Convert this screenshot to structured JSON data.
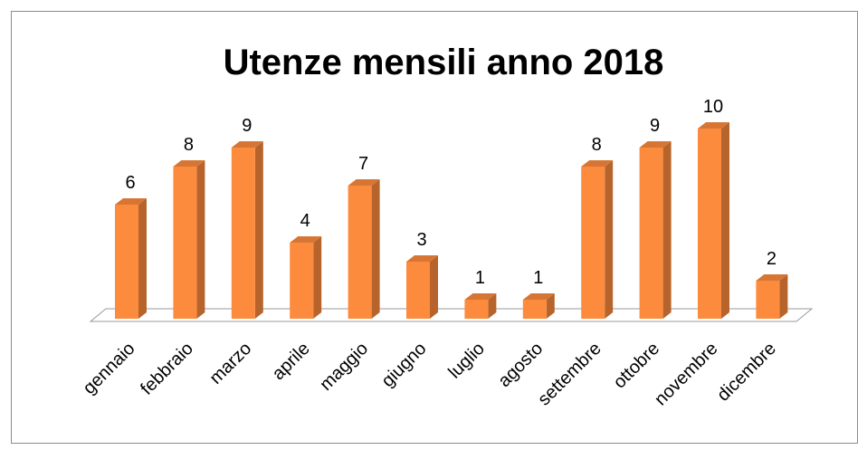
{
  "chart_data": {
    "type": "bar3d",
    "title": "Utenze mensili anno 2018",
    "categories": [
      "gennaio",
      "febbraio",
      "marzo",
      "aprile",
      "maggio",
      "giugno",
      "luglio",
      "agosto",
      "settembre",
      "ottobre",
      "novembre",
      "dicembre"
    ],
    "values": [
      6,
      8,
      9,
      4,
      7,
      3,
      1,
      1,
      8,
      9,
      10,
      2
    ],
    "color": "#fd8b3d"
  }
}
